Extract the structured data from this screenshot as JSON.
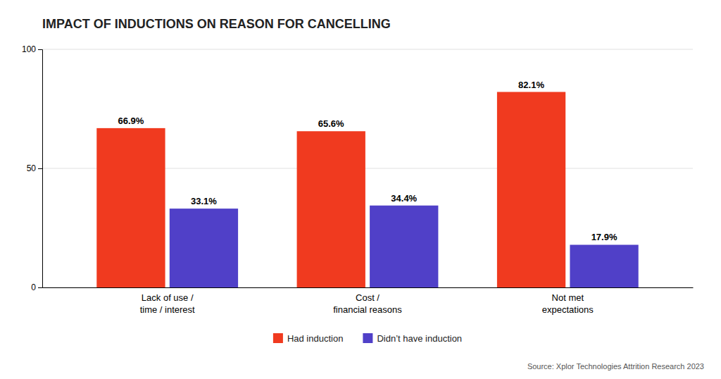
{
  "chart_data": {
    "type": "bar",
    "title": "IMPACT OF INDUCTIONS ON REASON FOR CANCELLING",
    "categories": [
      "Lack of use /\ntime / interest",
      "Cost /\nfinancial reasons",
      "Not met\nexpectations"
    ],
    "series": [
      {
        "name": "Had induction",
        "color": "#F03A1F",
        "values": [
          66.9,
          65.6,
          82.1
        ],
        "value_labels": [
          "66.9%",
          "65.6%",
          "82.1%"
        ]
      },
      {
        "name": "Didn’t have induction",
        "color": "#5040C8",
        "values": [
          33.1,
          34.4,
          17.9
        ],
        "value_labels": [
          "33.1%",
          "34.4%",
          "17.9%"
        ]
      }
    ],
    "ylim": [
      0,
      100
    ],
    "yticks": [
      0,
      50,
      100
    ],
    "grid": true,
    "data_labels": true,
    "legend": "bottom",
    "annotations": [
      "Source: Xplor Technologies Attrition Research 2023"
    ]
  }
}
